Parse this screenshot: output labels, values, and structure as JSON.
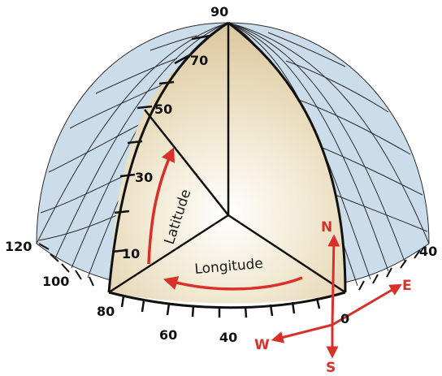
{
  "diagram": {
    "pole_label": "90",
    "latitude_labels": [
      "70",
      "50",
      "30",
      "10"
    ],
    "longitude_labels": [
      "120",
      "100",
      "80",
      "60",
      "40",
      "0",
      "40"
    ],
    "latitude_arrow_label": "Latitude",
    "longitude_arrow_label": "Longitude",
    "compass": {
      "north": "N",
      "south": "S",
      "east": "E",
      "west": "W"
    }
  },
  "colors": {
    "sphere_fill": "#cbdcea",
    "grid_line": "#2b2b2b",
    "wedge_fill": "#e8dab8",
    "wedge_center": "#ffffff",
    "axis_line": "#111111",
    "accent_red": "#d9302a"
  }
}
